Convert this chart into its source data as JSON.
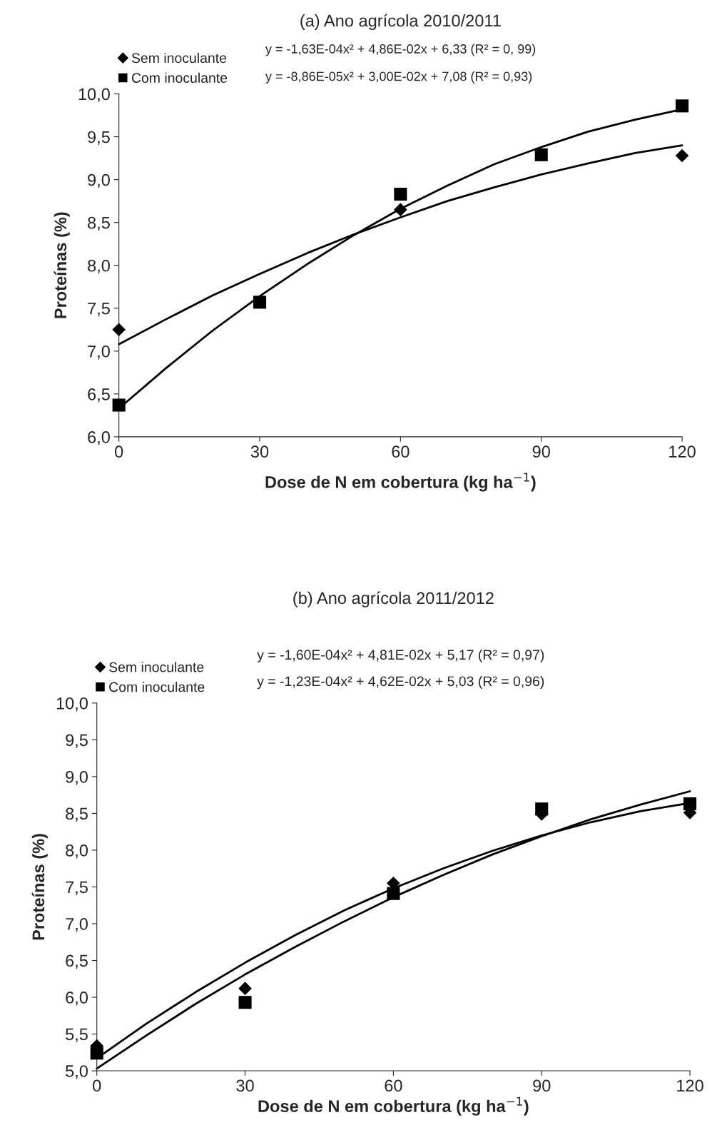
{
  "chart_data": [
    {
      "type": "scatter",
      "title": "(a) Ano agrícola 2010/2011",
      "xlabel": "Dose de N em cobertura (kg ha$^{−1}$)",
      "ylabel": "Proteínas (%)",
      "x": [
        0,
        30,
        60,
        90,
        120
      ],
      "series": [
        {
          "name": "Sem inoculante",
          "marker": "diamond",
          "color": "#000000",
          "values": [
            7.25,
            null,
            8.65,
            null,
            9.28
          ]
        },
        {
          "name": "Com inoculante",
          "marker": "square",
          "color": "#000000",
          "values": [
            6.37,
            7.57,
            8.83,
            9.29,
            9.86
          ]
        },
        {
          "type": "line",
          "color": "#000000",
          "x": [
            0,
            10,
            20,
            30,
            40,
            50,
            60,
            70,
            80,
            90,
            100,
            110,
            120
          ],
          "values": [
            6.33,
            6.8,
            7.24,
            7.64,
            8.01,
            8.35,
            8.66,
            8.93,
            9.18,
            9.38,
            9.56,
            9.7,
            9.82
          ]
        },
        {
          "type": "line",
          "color": "#000000",
          "x": [
            0,
            10,
            20,
            30,
            40,
            50,
            60,
            70,
            80,
            90,
            100,
            110,
            120
          ],
          "values": [
            7.08,
            7.37,
            7.65,
            7.9,
            8.14,
            8.36,
            8.56,
            8.75,
            8.91,
            9.06,
            9.19,
            9.31,
            9.4
          ]
        }
      ],
      "annotations": [
        "y = -1,63E-04x² + 4,86E-02x + 6,33 (R² = 0, 99)",
        "y = -8,86E-05x² + 3,00E-02x + 7,08 (R² = 0,93)"
      ],
      "xlim": [
        0,
        120
      ],
      "xticks": [
        0,
        30,
        60,
        90,
        120
      ],
      "ylim": [
        6.0,
        10.0
      ],
      "yticks": [
        {
          "value": 6.0,
          "label": "6,0"
        },
        {
          "value": 6.5,
          "label": "6,5"
        },
        {
          "value": 7.0,
          "label": "7,0"
        },
        {
          "value": 7.5,
          "label": "7,5"
        },
        {
          "value": 8.0,
          "label": "8,0"
        },
        {
          "value": 8.5,
          "label": "8,5"
        },
        {
          "value": 9.0,
          "label": "9,0"
        },
        {
          "value": 9.5,
          "label": "9,5"
        },
        {
          "value": 10.0,
          "label": "10,0"
        }
      ],
      "grid": false,
      "legend": "top left"
    },
    {
      "type": "scatter",
      "title": "(b) Ano agrícola 2011/2012",
      "xlabel": "Dose de N em cobertura (kg ha$^{−1}$)",
      "ylabel": "Proteínas (%)",
      "x": [
        0,
        30,
        60,
        90,
        120
      ],
      "series": [
        {
          "name": "Sem inoculante",
          "marker": "diamond",
          "color": "#000000",
          "values": [
            5.34,
            6.12,
            7.55,
            8.49,
            8.51
          ]
        },
        {
          "name": "Com inoculante",
          "marker": "square",
          "color": "#000000",
          "values": [
            5.24,
            5.93,
            7.41,
            8.56,
            8.63
          ]
        },
        {
          "type": "line",
          "color": "#000000",
          "x": [
            0,
            10,
            20,
            30,
            40,
            50,
            60,
            70,
            80,
            90,
            100,
            110,
            120
          ],
          "values": [
            5.17,
            5.64,
            6.07,
            6.47,
            6.84,
            7.18,
            7.48,
            7.75,
            7.99,
            8.2,
            8.38,
            8.53,
            8.64
          ]
        },
        {
          "type": "line",
          "color": "#000000",
          "x": [
            0,
            10,
            20,
            30,
            40,
            50,
            60,
            70,
            80,
            90,
            100,
            110,
            120
          ],
          "values": [
            5.03,
            5.48,
            5.91,
            6.31,
            6.68,
            7.03,
            7.36,
            7.66,
            7.94,
            8.19,
            8.42,
            8.62,
            8.8
          ]
        }
      ],
      "annotations": [
        "y = -1,60E-04x² + 4,81E-02x + 5,17 (R² = 0,97)",
        "y = -1,23E-04x² + 4,62E-02x + 5,03 (R² = 0,96)"
      ],
      "xlim": [
        0,
        120
      ],
      "xticks": [
        0,
        30,
        60,
        90,
        120
      ],
      "ylim": [
        5.0,
        10.0
      ],
      "yticks": [
        {
          "value": 5.0,
          "label": "5,0"
        },
        {
          "value": 5.5,
          "label": "5,5"
        },
        {
          "value": 6.0,
          "label": "6,0"
        },
        {
          "value": 6.5,
          "label": "6,5"
        },
        {
          "value": 7.0,
          "label": "7,0"
        },
        {
          "value": 7.5,
          "label": "7,5"
        },
        {
          "value": 8.0,
          "label": "8,0"
        },
        {
          "value": 8.5,
          "label": "8,5"
        },
        {
          "value": 9.0,
          "label": "9,0"
        },
        {
          "value": 9.5,
          "label": "9,5"
        },
        {
          "value": 10.0,
          "label": "10,0"
        }
      ],
      "grid": false,
      "legend": "top left"
    }
  ]
}
